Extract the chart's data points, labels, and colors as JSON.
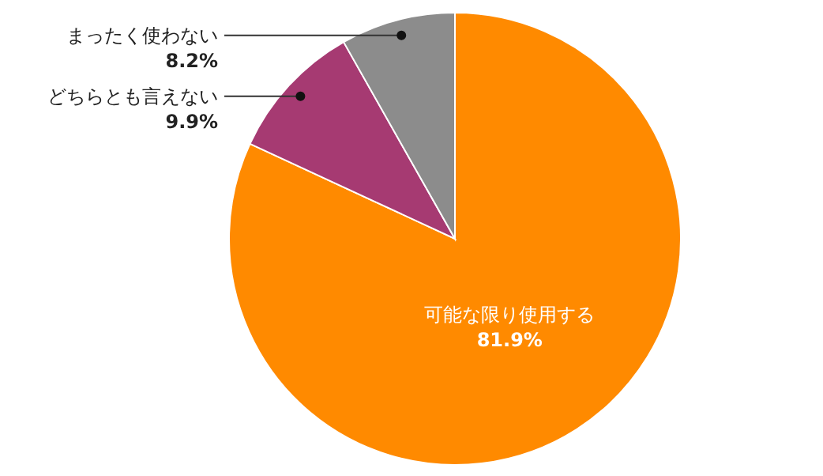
{
  "chart_data": {
    "type": "pie",
    "categories": [
      "可能な限り使用する",
      "どちらとも言えない",
      "まったく使わない"
    ],
    "values": [
      81.9,
      9.9,
      8.2
    ],
    "colors": [
      "#ff8a00",
      "#a63a72",
      "#8c8c8c"
    ],
    "value_labels": [
      "81.9%",
      "9.9%",
      "8.2%"
    ]
  }
}
